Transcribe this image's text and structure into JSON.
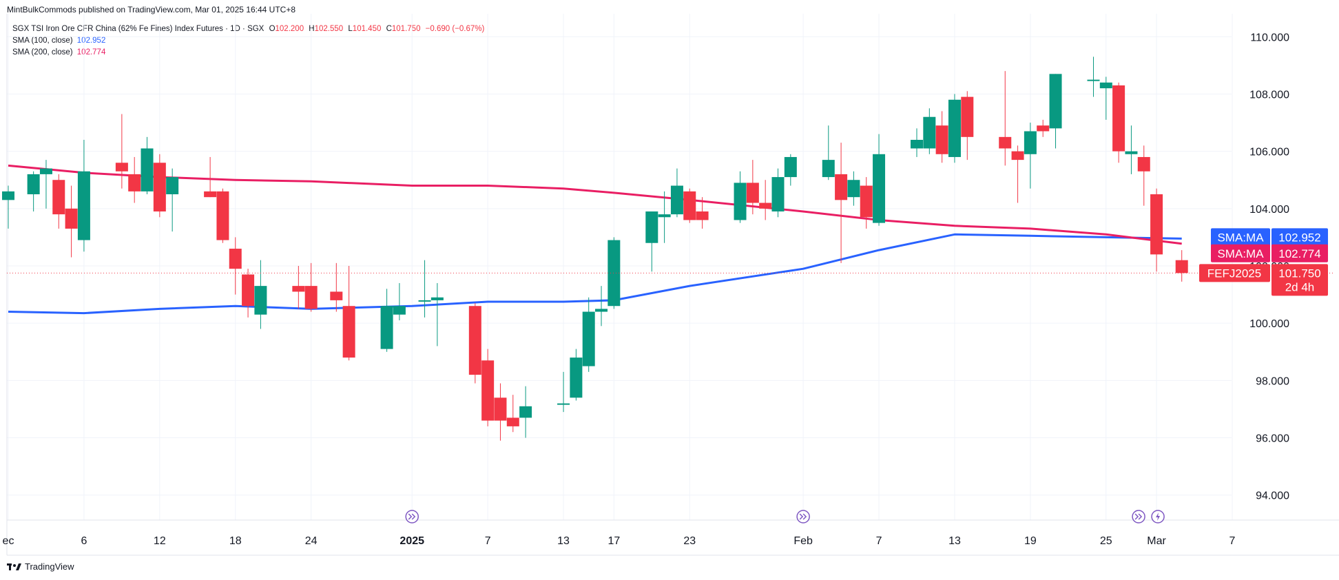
{
  "header": {
    "publisher": "MintBulkCommods published on TradingView.com, Mar 01, 2025 16:44 UTC+8"
  },
  "legend": {
    "symbol": "SGX TSI Iron Ore CFR China (62% Fe Fines) Index Futures · 1D · SGX",
    "o_label": "O",
    "o_value": "102.200",
    "h_label": "H",
    "h_value": "102.550",
    "l_label": "L",
    "l_value": "101.450",
    "c_label": "C",
    "c_value": "101.750",
    "change": "−0.690 (−0.67%)",
    "sma100_label": "SMA (100, close)",
    "sma100_value": "102.952",
    "sma200_label": "SMA (200, close)",
    "sma200_value": "102.774"
  },
  "badges": {
    "sma100": {
      "label": "SMA:MA",
      "value": "102.952",
      "color": "#2962ff"
    },
    "sma200": {
      "label": "SMA:MA",
      "value": "102.774",
      "color": "#e91e63"
    },
    "price": {
      "label": "FEFJ2025",
      "value": "101.750",
      "countdown": "2d 4h",
      "color": "#f23645"
    }
  },
  "footer": {
    "brand": "TradingView"
  },
  "colors": {
    "up": "#089981",
    "down": "#f23645",
    "grid": "#f0f3fa"
  },
  "chart_data": {
    "type": "candlestick",
    "ylim": [
      93.2,
      110.8
    ],
    "y_ticks": [
      94,
      96,
      98,
      100,
      102,
      104,
      106,
      108,
      110
    ],
    "y_tick_labels": [
      "94.000",
      "96.000",
      "98.000",
      "100.000",
      "102.000",
      "104.000",
      "106.000",
      "108.000",
      "110.000"
    ],
    "x_ticks": [
      {
        "label": "ec",
        "date": "2024-11-30"
      },
      {
        "label": "6",
        "date": "2024-12-06"
      },
      {
        "label": "12",
        "date": "2024-12-12"
      },
      {
        "label": "18",
        "date": "2024-12-18"
      },
      {
        "label": "24",
        "date": "2024-12-24"
      },
      {
        "label": "2025",
        "date": "2025-01-01"
      },
      {
        "label": "7",
        "date": "2025-01-07"
      },
      {
        "label": "13",
        "date": "2025-01-13"
      },
      {
        "label": "17",
        "date": "2025-01-17"
      },
      {
        "label": "23",
        "date": "2025-01-23"
      },
      {
        "label": "Feb",
        "date": "2025-02-01"
      },
      {
        "label": "7",
        "date": "2025-02-07"
      },
      {
        "label": "13",
        "date": "2025-02-13"
      },
      {
        "label": "19",
        "date": "2025-02-19"
      },
      {
        "label": "25",
        "date": "2025-02-25"
      },
      {
        "label": "Mar",
        "date": "2025-03-01"
      },
      {
        "label": "7",
        "date": "2025-03-07"
      }
    ],
    "candles": [
      {
        "date": "2024-11-30",
        "o": 104.3,
        "h": 104.8,
        "l": 103.3,
        "c": 104.6
      },
      {
        "date": "2024-12-02",
        "o": 104.5,
        "h": 105.3,
        "l": 103.9,
        "c": 105.2
      },
      {
        "date": "2024-12-03",
        "o": 105.2,
        "h": 105.7,
        "l": 104.0,
        "c": 105.4
      },
      {
        "date": "2024-12-04",
        "o": 105.0,
        "h": 105.2,
        "l": 103.3,
        "c": 103.8
      },
      {
        "date": "2024-12-05",
        "o": 104.0,
        "h": 104.8,
        "l": 102.3,
        "c": 103.3
      },
      {
        "date": "2024-12-06",
        "o": 102.9,
        "h": 106.4,
        "l": 102.5,
        "c": 105.3
      },
      {
        "date": "2024-12-09",
        "o": 105.6,
        "h": 107.3,
        "l": 104.7,
        "c": 105.3
      },
      {
        "date": "2024-12-10",
        "o": 105.2,
        "h": 105.8,
        "l": 104.2,
        "c": 104.6
      },
      {
        "date": "2024-12-11",
        "o": 104.6,
        "h": 106.5,
        "l": 104.5,
        "c": 106.1
      },
      {
        "date": "2024-12-12",
        "o": 105.6,
        "h": 105.9,
        "l": 103.7,
        "c": 103.9
      },
      {
        "date": "2024-12-13",
        "o": 104.5,
        "h": 105.4,
        "l": 103.2,
        "c": 105.1
      },
      {
        "date": "2024-12-16",
        "o": 104.6,
        "h": 105.8,
        "l": 104.4,
        "c": 104.4
      },
      {
        "date": "2024-12-17",
        "o": 104.6,
        "h": 104.7,
        "l": 102.8,
        "c": 102.9
      },
      {
        "date": "2024-12-18",
        "o": 102.6,
        "h": 103.0,
        "l": 101.0,
        "c": 101.9
      },
      {
        "date": "2024-12-19",
        "o": 101.7,
        "h": 101.9,
        "l": 100.2,
        "c": 100.6
      },
      {
        "date": "2024-12-20",
        "o": 100.3,
        "h": 102.2,
        "l": 99.8,
        "c": 101.3
      },
      {
        "date": "2024-12-23",
        "o": 101.3,
        "h": 102.0,
        "l": 100.5,
        "c": 101.1
      },
      {
        "date": "2024-12-24",
        "o": 101.3,
        "h": 102.1,
        "l": 100.4,
        "c": 100.5
      },
      {
        "date": "2024-12-26",
        "o": 101.1,
        "h": 102.1,
        "l": 100.4,
        "c": 100.8
      },
      {
        "date": "2024-12-27",
        "o": 100.6,
        "h": 102.0,
        "l": 98.7,
        "c": 98.8
      },
      {
        "date": "2024-12-30",
        "o": 99.1,
        "h": 101.2,
        "l": 99.0,
        "c": 100.6
      },
      {
        "date": "2024-12-31",
        "o": 100.3,
        "h": 101.4,
        "l": 100.1,
        "c": 100.6
      },
      {
        "date": "2025-01-02",
        "o": 100.8,
        "h": 102.2,
        "l": 100.2,
        "c": 100.8
      },
      {
        "date": "2025-01-03",
        "o": 100.8,
        "h": 101.4,
        "l": 99.2,
        "c": 100.9
      },
      {
        "date": "2025-01-06",
        "o": 100.6,
        "h": 100.7,
        "l": 97.9,
        "c": 98.2
      },
      {
        "date": "2025-01-07",
        "o": 98.7,
        "h": 99.1,
        "l": 96.4,
        "c": 96.6
      },
      {
        "date": "2025-01-08",
        "o": 97.4,
        "h": 97.9,
        "l": 95.9,
        "c": 96.6
      },
      {
        "date": "2025-01-09",
        "o": 96.7,
        "h": 97.5,
        "l": 96.2,
        "c": 96.4
      },
      {
        "date": "2025-01-10",
        "o": 96.7,
        "h": 97.8,
        "l": 96.0,
        "c": 97.1
      },
      {
        "date": "2025-01-13",
        "o": 97.2,
        "h": 98.3,
        "l": 96.9,
        "c": 97.2
      },
      {
        "date": "2025-01-14",
        "o": 97.4,
        "h": 99.1,
        "l": 97.3,
        "c": 98.8
      },
      {
        "date": "2025-01-15",
        "o": 98.5,
        "h": 100.9,
        "l": 98.3,
        "c": 100.4
      },
      {
        "date": "2025-01-16",
        "o": 100.4,
        "h": 101.3,
        "l": 99.9,
        "c": 100.5
      },
      {
        "date": "2025-01-17",
        "o": 100.6,
        "h": 103.0,
        "l": 100.5,
        "c": 102.9
      },
      {
        "date": "2025-01-20",
        "o": 102.8,
        "h": 103.9,
        "l": 101.8,
        "c": 103.9
      },
      {
        "date": "2025-01-21",
        "o": 103.7,
        "h": 104.6,
        "l": 102.8,
        "c": 103.8
      },
      {
        "date": "2025-01-22",
        "o": 103.8,
        "h": 105.4,
        "l": 103.7,
        "c": 104.8
      },
      {
        "date": "2025-01-23",
        "o": 104.6,
        "h": 104.7,
        "l": 103.5,
        "c": 103.6
      },
      {
        "date": "2025-01-24",
        "o": 103.9,
        "h": 104.4,
        "l": 103.3,
        "c": 103.6
      },
      {
        "date": "2025-01-27",
        "o": 103.6,
        "h": 105.3,
        "l": 103.5,
        "c": 104.9
      },
      {
        "date": "2025-01-28",
        "o": 104.9,
        "h": 105.7,
        "l": 103.8,
        "c": 104.2
      },
      {
        "date": "2025-01-29",
        "o": 104.2,
        "h": 105.0,
        "l": 103.6,
        "c": 104.0
      },
      {
        "date": "2025-01-30",
        "o": 103.9,
        "h": 105.4,
        "l": 103.7,
        "c": 105.1
      },
      {
        "date": "2025-01-31",
        "o": 105.1,
        "h": 105.9,
        "l": 104.8,
        "c": 105.8
      },
      {
        "date": "2025-02-03",
        "o": 105.1,
        "h": 106.9,
        "l": 105.0,
        "c": 105.7
      },
      {
        "date": "2025-02-04",
        "o": 105.2,
        "h": 106.3,
        "l": 102.1,
        "c": 104.3
      },
      {
        "date": "2025-02-05",
        "o": 104.4,
        "h": 105.3,
        "l": 104.1,
        "c": 105.0
      },
      {
        "date": "2025-02-06",
        "o": 104.8,
        "h": 105.1,
        "l": 103.3,
        "c": 103.7
      },
      {
        "date": "2025-02-07",
        "o": 103.5,
        "h": 106.6,
        "l": 103.4,
        "c": 105.9
      },
      {
        "date": "2025-02-10",
        "o": 106.1,
        "h": 106.8,
        "l": 105.8,
        "c": 106.4
      },
      {
        "date": "2025-02-11",
        "o": 106.1,
        "h": 107.5,
        "l": 105.9,
        "c": 107.2
      },
      {
        "date": "2025-02-12",
        "o": 106.9,
        "h": 107.4,
        "l": 105.6,
        "c": 105.9
      },
      {
        "date": "2025-02-13",
        "o": 105.8,
        "h": 108.0,
        "l": 105.6,
        "c": 107.8
      },
      {
        "date": "2025-02-14",
        "o": 107.9,
        "h": 108.1,
        "l": 105.7,
        "c": 106.5
      },
      {
        "date": "2025-02-17",
        "o": 106.5,
        "h": 108.8,
        "l": 105.5,
        "c": 106.1
      },
      {
        "date": "2025-02-18",
        "o": 106.0,
        "h": 106.2,
        "l": 104.2,
        "c": 105.7
      },
      {
        "date": "2025-02-19",
        "o": 105.9,
        "h": 107.0,
        "l": 104.7,
        "c": 106.7
      },
      {
        "date": "2025-02-20",
        "o": 106.9,
        "h": 107.1,
        "l": 106.5,
        "c": 106.7
      },
      {
        "date": "2025-02-21",
        "o": 106.8,
        "h": 108.7,
        "l": 106.1,
        "c": 108.7
      },
      {
        "date": "2025-02-24",
        "o": 108.5,
        "h": 109.3,
        "l": 107.9,
        "c": 108.5
      },
      {
        "date": "2025-02-25",
        "o": 108.2,
        "h": 108.6,
        "l": 107.1,
        "c": 108.4
      },
      {
        "date": "2025-02-26",
        "o": 108.3,
        "h": 108.4,
        "l": 105.6,
        "c": 106.0
      },
      {
        "date": "2025-02-27",
        "o": 105.9,
        "h": 106.9,
        "l": 105.2,
        "c": 106.0
      },
      {
        "date": "2025-02-28",
        "o": 105.8,
        "h": 106.2,
        "l": 104.1,
        "c": 105.3
      },
      {
        "date": "2025-03-01",
        "o": 104.5,
        "h": 104.7,
        "l": 101.8,
        "c": 102.4
      },
      {
        "date": "2025-03-03",
        "o": 102.2,
        "h": 102.55,
        "l": 101.45,
        "c": 101.75
      }
    ],
    "series": [
      {
        "name": "SMA (100, close)",
        "color": "#2962ff",
        "points": [
          [
            "2024-11-30",
            100.4
          ],
          [
            "2024-12-06",
            100.35
          ],
          [
            "2024-12-12",
            100.5
          ],
          [
            "2024-12-18",
            100.6
          ],
          [
            "2024-12-24",
            100.5
          ],
          [
            "2025-01-01",
            100.6
          ],
          [
            "2025-01-07",
            100.75
          ],
          [
            "2025-01-13",
            100.75
          ],
          [
            "2025-01-17",
            100.8
          ],
          [
            "2025-01-23",
            101.3
          ],
          [
            "2025-02-01",
            101.9
          ],
          [
            "2025-02-07",
            102.55
          ],
          [
            "2025-02-13",
            103.1
          ],
          [
            "2025-02-19",
            103.05
          ],
          [
            "2025-02-25",
            103.0
          ],
          [
            "2025-03-03",
            102.952
          ]
        ]
      },
      {
        "name": "SMA (200, close)",
        "color": "#e91e63",
        "points": [
          [
            "2024-11-30",
            105.5
          ],
          [
            "2024-12-06",
            105.25
          ],
          [
            "2024-12-12",
            105.1
          ],
          [
            "2024-12-18",
            105.0
          ],
          [
            "2024-12-24",
            104.95
          ],
          [
            "2025-01-01",
            104.8
          ],
          [
            "2025-01-07",
            104.8
          ],
          [
            "2025-01-13",
            104.7
          ],
          [
            "2025-01-17",
            104.55
          ],
          [
            "2025-01-23",
            104.3
          ],
          [
            "2025-02-01",
            103.9
          ],
          [
            "2025-02-07",
            103.6
          ],
          [
            "2025-02-13",
            103.4
          ],
          [
            "2025-02-19",
            103.3
          ],
          [
            "2025-02-25",
            103.1
          ],
          [
            "2025-03-03",
            102.774
          ]
        ]
      }
    ],
    "last_price": 101.75,
    "grid": true,
    "event_markers": [
      "2025-01-01",
      "2025-02-01",
      "2025-03-01"
    ],
    "event_marker_last": "lightning"
  }
}
